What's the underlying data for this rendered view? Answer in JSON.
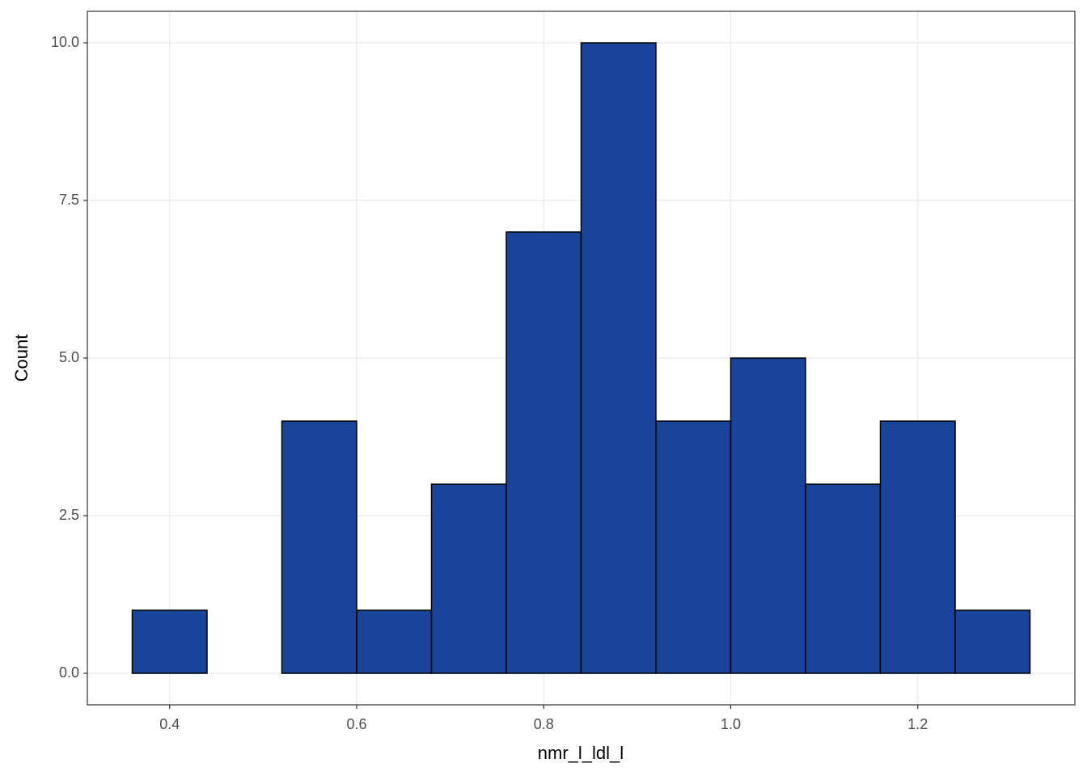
{
  "chart_data": {
    "type": "histogram",
    "x_label": "nmr_l_ldl_l",
    "y_label": "Count",
    "bins": [
      0.36,
      0.44,
      0.52,
      0.6,
      0.68,
      0.76,
      0.84,
      0.92,
      1.0,
      1.08,
      1.16,
      1.24,
      1.32
    ],
    "values": [
      1,
      0,
      4,
      1,
      3,
      7,
      10,
      4,
      5,
      3,
      4,
      1
    ],
    "color": "#1a449a",
    "edge_color": "#000000",
    "xlim": [
      0.312,
      1.368
    ],
    "ylim": [
      -0.5,
      10.5
    ],
    "xticks": [
      0.4,
      0.6,
      0.8,
      {
        "value": 1.0,
        "label": "1.0"
      },
      1.2
    ],
    "yticks": [
      {
        "value": 0,
        "label": "0.0"
      },
      2.5,
      {
        "value": 5,
        "label": "5.0"
      },
      7.5,
      {
        "value": 10,
        "label": "10.0"
      }
    ],
    "grid": true
  }
}
